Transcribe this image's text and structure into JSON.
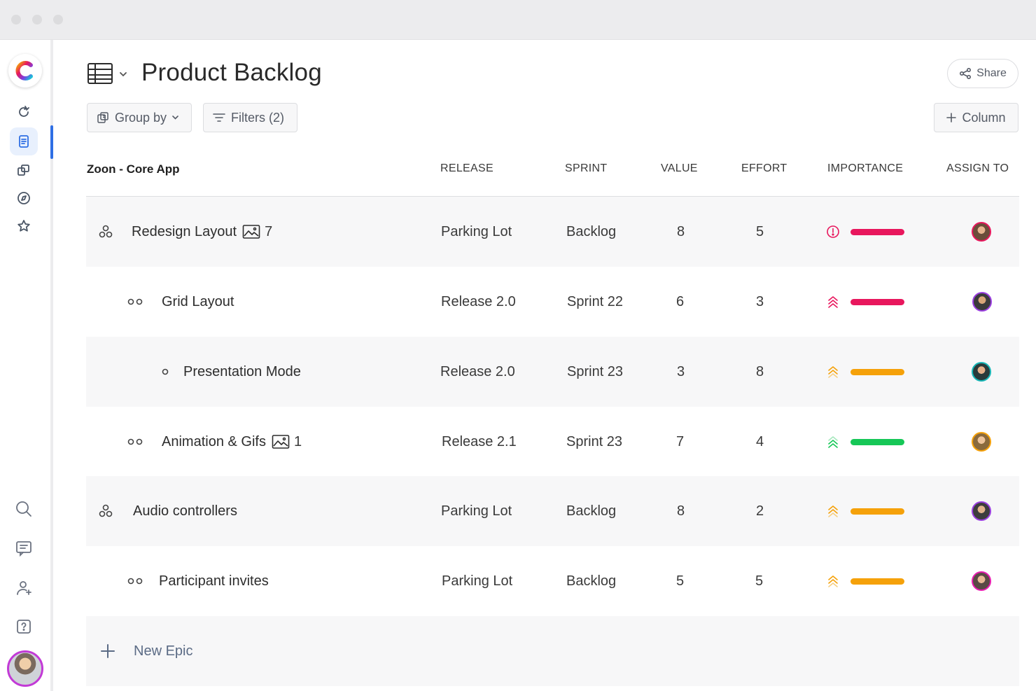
{
  "header": {
    "title": "Product Backlog",
    "share_label": "Share"
  },
  "toolbar": {
    "group_by_label": "Group by",
    "filters_label": "Filters (2)",
    "column_label": "Column"
  },
  "table": {
    "group_label": "Zoon - Core App",
    "columns": [
      "RELEASE",
      "SPRINT",
      "VALUE",
      "EFFORT",
      "IMPORTANCE",
      "ASSIGN TO"
    ],
    "rows": [
      {
        "name": "Redesign Layout",
        "level": "epic",
        "attachments": "7",
        "release": "Parking Lot",
        "sprint": "Backlog",
        "value": "8",
        "effort": "5",
        "importance_icon": "alert-circle-icon",
        "importance_color": "#e8175d",
        "avatar_color": "#e8175d"
      },
      {
        "name": "Grid Layout",
        "level": "feature",
        "release": "Release 2.0",
        "sprint": "Sprint 22",
        "value": "6",
        "effort": "3",
        "importance_icon": "triple-chevron-up-icon",
        "importance_color": "#e8175d",
        "avatar_color": "#9b3fe0"
      },
      {
        "name": "Presentation Mode",
        "level": "story",
        "release": "Release 2.0",
        "sprint": "Sprint 23",
        "value": "3",
        "effort": "8",
        "importance_icon": "triple-chevron-up-icon",
        "importance_color": "#f5a10a",
        "avatar_color": "#18b7b7"
      },
      {
        "name": "Animation & Gifs",
        "level": "feature",
        "attachments": "1",
        "release": "Release 2.1",
        "sprint": "Sprint 23",
        "value": "7",
        "effort": "4",
        "importance_icon": "triple-chevron-up-icon",
        "importance_color": "#16c757",
        "avatar_color": "#f5a10a"
      },
      {
        "name": "Audio controllers",
        "level": "epic",
        "release": "Parking Lot",
        "sprint": "Backlog",
        "value": "8",
        "effort": "2",
        "importance_icon": "triple-chevron-up-icon",
        "importance_color": "#f5a10a",
        "avatar_color": "#9b3fe0"
      },
      {
        "name": "Participant invites",
        "level": "feature",
        "release": "Parking Lot",
        "sprint": "Backlog",
        "value": "5",
        "effort": "5",
        "importance_icon": "triple-chevron-up-icon",
        "importance_color": "#f5a10a",
        "avatar_color": "#e81cb0"
      }
    ],
    "new_epic_label": "New Epic"
  },
  "colors": {
    "accent": "#2f6fe4",
    "active_nav_bg": "#e8f0fd"
  }
}
